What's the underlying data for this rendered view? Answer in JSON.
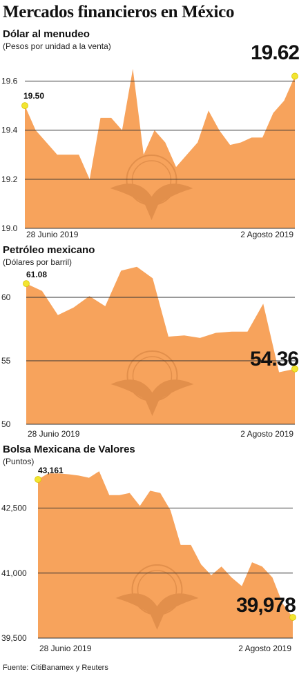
{
  "title": "Mercados financieros en México",
  "source": "Fuente: CitiBanamex y Reuters",
  "colors": {
    "fill": "#F7A35C",
    "marker": "#F2E531",
    "grid": "#333333",
    "text": "#1a1a1a"
  },
  "watermark_icon": "eagle-seal-icon",
  "chart_data": [
    {
      "type": "area",
      "title": "Dólar al menudeo",
      "subtitle": "(Pesos por unidad a la venta)",
      "ylim": [
        19.0,
        19.7
      ],
      "yticks": [
        19.0,
        19.2,
        19.4,
        19.6
      ],
      "ytick_labels": [
        "19.0",
        "19.2",
        "19.4",
        "19.6"
      ],
      "x_labels": {
        "start": "28 Junio 2019",
        "end": "2 Agosto 2019"
      },
      "start_label": "19.50",
      "end_label": "19.62",
      "values": [
        19.5,
        19.4,
        19.35,
        19.3,
        19.3,
        19.3,
        19.2,
        19.45,
        19.45,
        19.4,
        19.65,
        19.3,
        19.4,
        19.35,
        19.25,
        19.3,
        19.35,
        19.48,
        19.4,
        19.34,
        19.35,
        19.37,
        19.37,
        19.47,
        19.52,
        19.62
      ]
    },
    {
      "type": "area",
      "title": "Petróleo mexicano",
      "subtitle": "(Dólares por barril)",
      "ylim": [
        50,
        62.5
      ],
      "yticks": [
        50,
        55,
        60
      ],
      "ytick_labels": [
        "50",
        "55",
        "60"
      ],
      "x_labels": {
        "start": "28 Junio 2019",
        "end": "2 Agosto 2019"
      },
      "start_label": "61.08",
      "end_label": "54.36",
      "values": [
        61.08,
        60.5,
        58.6,
        59.2,
        60.1,
        59.3,
        62.1,
        62.4,
        61.5,
        56.9,
        57.0,
        56.8,
        57.2,
        57.3,
        57.3,
        59.5,
        54.1,
        54.36
      ]
    },
    {
      "type": "area",
      "title": "Bolsa Mexicana de Valores",
      "subtitle": "(Puntos)",
      "ylim": [
        39500,
        43400
      ],
      "yticks": [
        39500,
        41000,
        42500
      ],
      "ytick_labels": [
        "39,500",
        "41,000",
        "42,500"
      ],
      "x_labels": {
        "start": "28 Junio 2019",
        "end": "2 Agosto 2019"
      },
      "start_label": "43,161",
      "end_label": "39,978",
      "values": [
        43161,
        43300,
        43300,
        43280,
        43250,
        43200,
        43350,
        42800,
        42800,
        42850,
        42550,
        42900,
        42850,
        42450,
        41650,
        41650,
        41200,
        40950,
        41150,
        40900,
        40700,
        41250,
        41150,
        40900,
        40300,
        39978
      ]
    }
  ]
}
